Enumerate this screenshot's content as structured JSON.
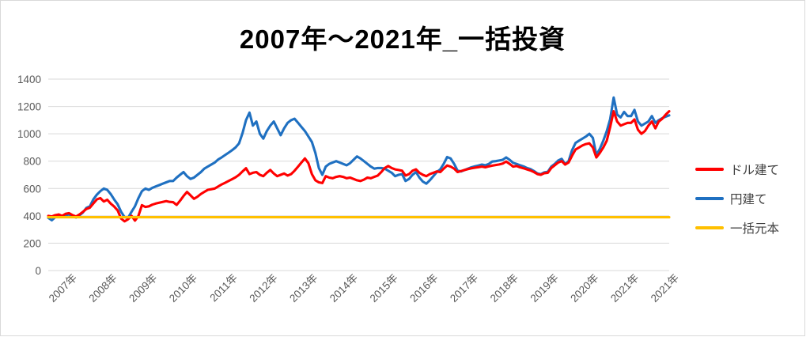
{
  "title": "2007年～2021年_一括投資",
  "chart_data": {
    "type": "line",
    "title": "2007年～2021年_一括投資",
    "x_frequency": "monthly",
    "x_start": "2007-01",
    "x_end": "2021-12",
    "x_axis": {
      "labels": [
        "2007年",
        "2008年",
        "2009年",
        "2010年",
        "2011年",
        "2012年",
        "2013年",
        "2014年",
        "2015年",
        "2016年",
        "2017年",
        "2018年",
        "2019年",
        "2020年",
        "2021年",
        "2021年"
      ]
    },
    "y_axis": {
      "min": 0,
      "max": 1400,
      "step": 200,
      "ticks": [
        0,
        200,
        400,
        600,
        800,
        1000,
        1200,
        1400
      ]
    },
    "grid": true,
    "legend_position": "right",
    "series": [
      {
        "name": "円建て",
        "color": "#1f70c1",
        "values": [
          385,
          368,
          390,
          400,
          395,
          405,
          410,
          395,
          388,
          405,
          425,
          458,
          470,
          520,
          555,
          580,
          600,
          590,
          560,
          520,
          485,
          430,
          390,
          385,
          430,
          470,
          530,
          580,
          600,
          590,
          605,
          615,
          625,
          635,
          645,
          655,
          655,
          680,
          700,
          720,
          690,
          670,
          680,
          700,
          720,
          745,
          760,
          775,
          790,
          812,
          828,
          845,
          862,
          880,
          900,
          930,
          1005,
          1100,
          1155,
          1060,
          1090,
          1000,
          965,
          1020,
          1060,
          1090,
          1040,
          990,
          1040,
          1080,
          1100,
          1110,
          1080,
          1050,
          1020,
          980,
          940,
          860,
          750,
          700,
          760,
          780,
          790,
          800,
          790,
          780,
          770,
          785,
          810,
          835,
          820,
          800,
          780,
          760,
          745,
          750,
          750,
          745,
          730,
          715,
          690,
          700,
          705,
          655,
          670,
          700,
          720,
          680,
          650,
          635,
          660,
          690,
          720,
          740,
          780,
          830,
          820,
          780,
          730,
          725,
          735,
          745,
          755,
          762,
          768,
          775,
          770,
          780,
          797,
          800,
          805,
          810,
          827,
          810,
          788,
          780,
          770,
          762,
          750,
          742,
          728,
          710,
          705,
          718,
          722,
          760,
          780,
          805,
          817,
          778,
          800,
          880,
          933,
          950,
          965,
          980,
          1000,
          970,
          846,
          890,
          950,
          1020,
          1108,
          1265,
          1140,
          1120,
          1160,
          1130,
          1130,
          1175,
          1090,
          1060,
          1075,
          1090,
          1130,
          1080,
          1100,
          1115,
          1125,
          1135
        ]
      },
      {
        "name": "ドル建て",
        "color": "#ff0000",
        "values": [
          400,
          395,
          405,
          410,
          400,
          415,
          420,
          405,
          395,
          410,
          430,
          450,
          460,
          490,
          520,
          530,
          505,
          518,
          490,
          468,
          440,
          380,
          360,
          375,
          400,
          365,
          400,
          478,
          465,
          470,
          482,
          490,
          496,
          502,
          508,
          502,
          500,
          480,
          510,
          545,
          575,
          550,
          525,
          540,
          560,
          575,
          590,
          595,
          600,
          615,
          630,
          642,
          655,
          668,
          682,
          700,
          725,
          748,
          705,
          715,
          720,
          700,
          690,
          715,
          735,
          710,
          690,
          700,
          710,
          695,
          705,
          730,
          760,
          790,
          820,
          785,
          705,
          660,
          645,
          640,
          690,
          680,
          675,
          685,
          690,
          685,
          675,
          680,
          670,
          660,
          655,
          665,
          680,
          675,
          685,
          695,
          720,
          750,
          765,
          750,
          740,
          735,
          730,
          695,
          705,
          730,
          740,
          715,
          700,
          690,
          705,
          715,
          725,
          720,
          745,
          768,
          760,
          745,
          720,
          728,
          735,
          742,
          748,
          752,
          756,
          760,
          755,
          762,
          767,
          772,
          776,
          782,
          797,
          780,
          760,
          765,
          755,
          748,
          740,
          732,
          720,
          705,
          700,
          712,
          715,
          750,
          770,
          790,
          800,
          775,
          790,
          840,
          885,
          900,
          915,
          925,
          930,
          900,
          827,
          860,
          900,
          950,
          1050,
          1165,
          1090,
          1060,
          1070,
          1080,
          1080,
          1105,
          1030,
          1000,
          1020,
          1060,
          1090,
          1040,
          1090,
          1110,
          1140,
          1165
        ]
      },
      {
        "name": "一括元本",
        "color": "#ffc000",
        "constant": 390
      }
    ],
    "legend": [
      {
        "label": "ドル建て",
        "color": "#ff0000"
      },
      {
        "label": "円建て",
        "color": "#1f70c1"
      },
      {
        "label": "一括元本",
        "color": "#ffc000"
      }
    ]
  },
  "colors": {
    "grid": "#d9d9d9",
    "axis_text": "#595959",
    "title_text": "#000000"
  }
}
